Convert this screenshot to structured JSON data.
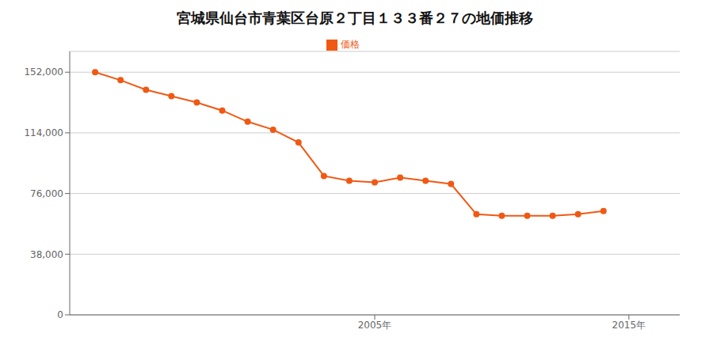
{
  "chart_data": {
    "type": "line",
    "title": "宮城県仙台市青葉区台原２丁目１３３番２７の地価推移",
    "x": [
      1994,
      1995,
      1996,
      1997,
      1998,
      1999,
      2000,
      2001,
      2002,
      2003,
      2004,
      2005,
      2006,
      2007,
      2008,
      2009,
      2010,
      2011,
      2012,
      2013,
      2014
    ],
    "series": [
      {
        "name": "価格",
        "color": "#f05914",
        "marker": "circle",
        "values": [
          152000,
          147000,
          141000,
          137000,
          133000,
          128000,
          121000,
          116000,
          108000,
          87000,
          84000,
          83000,
          86000,
          84000,
          82000,
          63000,
          62000,
          62000,
          62000,
          63000,
          65000
        ]
      }
    ],
    "xlim": [
      1993,
      2017
    ],
    "xticks": [
      {
        "value": 2005,
        "label": "2005年"
      },
      {
        "value": 2015,
        "label": "2015年"
      }
    ],
    "ylim": [
      0,
      165000
    ],
    "yticks": [
      0,
      {
        "value": 38000,
        "label": "38,000"
      },
      {
        "value": 76000,
        "label": "76,000"
      },
      {
        "value": 114000,
        "label": "114,000"
      },
      {
        "value": 152000,
        "label": "152,000"
      }
    ],
    "grid": "y",
    "legend": "top"
  }
}
